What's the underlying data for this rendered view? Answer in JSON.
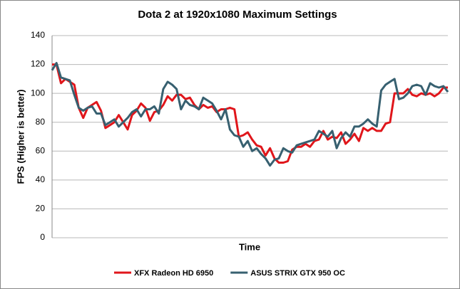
{
  "chart_data": {
    "type": "line",
    "title": "Dota 2 at 1920x1080 Maximum Settings",
    "x_label": "Time",
    "y_label": "FPS (Higher is better)",
    "ylim": [
      0,
      140
    ],
    "yticks": [
      0,
      20,
      40,
      60,
      80,
      100,
      120,
      140
    ],
    "grid": true,
    "legend": "bottom",
    "series": [
      {
        "name": "XFX Radeon HD 6950",
        "color": "#e0161b",
        "values": [
          120,
          120,
          107,
          110,
          108,
          106,
          90,
          83,
          90,
          92,
          94,
          88,
          76,
          78,
          80,
          85,
          80,
          75,
          85,
          88,
          93,
          90,
          81,
          87,
          88,
          92,
          98,
          95,
          99,
          99,
          96,
          97,
          92,
          89,
          92,
          90,
          91,
          87,
          89,
          89,
          90,
          89,
          70,
          71,
          73,
          68,
          64,
          63,
          57,
          62,
          55,
          52,
          52,
          53,
          61,
          63,
          63,
          65,
          63,
          67,
          68,
          74,
          68,
          70,
          69,
          73,
          65,
          68,
          72,
          67,
          76,
          74,
          76,
          74,
          74,
          79,
          80,
          100,
          100,
          100,
          103,
          99,
          98,
          100,
          99,
          100,
          98,
          100,
          104,
          104
        ]
      },
      {
        "name": "ASUS STRIX GTX 950 OC",
        "color": "#376070",
        "values": [
          116,
          121,
          111,
          110,
          109,
          99,
          90,
          88,
          90,
          91,
          86,
          86,
          78,
          80,
          82,
          77,
          80,
          83,
          87,
          89,
          84,
          89,
          89,
          91,
          86,
          103,
          108,
          106,
          103,
          89,
          95,
          92,
          91,
          89,
          97,
          95,
          93,
          88,
          82,
          89,
          75,
          71,
          70,
          63,
          67,
          60,
          62,
          58,
          55,
          50,
          54,
          55,
          62,
          60,
          59,
          64,
          65,
          66,
          67,
          68,
          74,
          72,
          70,
          74,
          62,
          69,
          73,
          70,
          77,
          77,
          79,
          82,
          79,
          77,
          102,
          106,
          108,
          110,
          96,
          97,
          100,
          105,
          106,
          105,
          99,
          107,
          105,
          104,
          105,
          101
        ]
      }
    ]
  }
}
